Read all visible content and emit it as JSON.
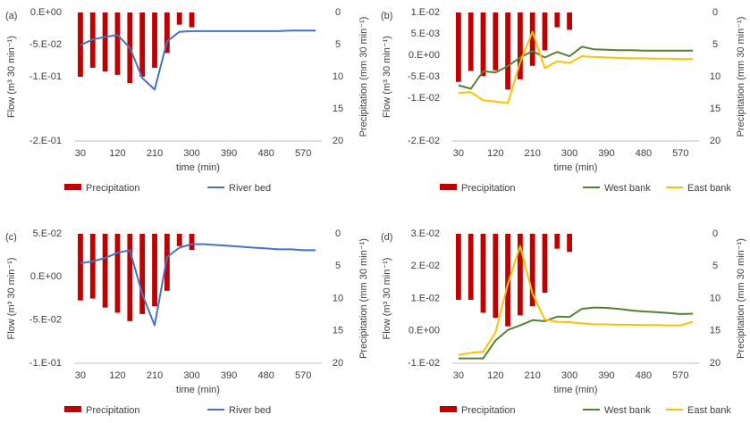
{
  "colors": {
    "precip": "#C00000",
    "river_bed": "#4472C4",
    "west_bank": "#548235",
    "east_bank": "#FFC000",
    "axis": "#BFBFBF",
    "text": "#404040"
  },
  "chart_data": [
    {
      "panel": "(a)",
      "type": "bar+line",
      "xlabel": "time (min)",
      "ylabel_left": "Flow (m³ 30 min⁻¹)",
      "ylabel_right": "Precipitation (mm 30 min⁻¹)",
      "x": [
        30,
        60,
        90,
        120,
        150,
        180,
        210,
        240,
        270,
        300,
        330,
        360,
        390,
        420,
        450,
        480,
        510,
        540,
        570,
        600
      ],
      "x_tick_labels": [
        "30",
        "120",
        "210",
        "300",
        "390",
        "480",
        "570"
      ],
      "x_tick_values": [
        30,
        120,
        210,
        300,
        390,
        480,
        570
      ],
      "ylim_left": [
        -0.2,
        0
      ],
      "y_ticks_left": [
        "0.E+00",
        "-5.E-02",
        "-1.E-01",
        "-2.E-01"
      ],
      "y_tick_values_left": [
        0,
        -0.05,
        -0.1,
        -0.2
      ],
      "ylim_right": [
        20,
        0
      ],
      "y_ticks_right": [
        "0",
        "5",
        "10",
        "15",
        "20"
      ],
      "precipitation": {
        "name": "Precipitation",
        "x": [
          30,
          60,
          90,
          120,
          150,
          180,
          210,
          240,
          270,
          300
        ],
        "values": [
          10,
          8.6,
          9.2,
          9.7,
          11,
          10,
          8.6,
          6.3,
          1.9,
          2.3
        ]
      },
      "series": [
        {
          "name": "River bed",
          "color_key": "river_bed",
          "values": [
            -0.051,
            -0.042,
            -0.038,
            -0.035,
            -0.055,
            -0.102,
            -0.12,
            -0.045,
            -0.03,
            -0.029,
            -0.029,
            -0.029,
            -0.029,
            -0.029,
            -0.029,
            -0.029,
            -0.029,
            -0.028,
            -0.028,
            -0.028
          ]
        }
      ],
      "legend": [
        "Precipitation",
        "River bed"
      ]
    },
    {
      "panel": "(b)",
      "type": "bar+line",
      "xlabel": "time (min)",
      "ylabel_left": "Flow (m³ 30 min⁻¹)",
      "ylabel_right": "Precipitation (mm 30 min⁻¹)",
      "x": [
        30,
        60,
        90,
        120,
        150,
        180,
        210,
        240,
        270,
        300,
        330,
        360,
        390,
        420,
        450,
        480,
        510,
        540,
        570,
        600
      ],
      "x_tick_labels": [
        "30",
        "120",
        "210",
        "300",
        "390",
        "480",
        "570"
      ],
      "x_tick_values": [
        30,
        120,
        210,
        300,
        390,
        480,
        570
      ],
      "ylim_left": [
        -0.02,
        0.01
      ],
      "y_ticks_left": [
        "1.E-02",
        "5.E-03",
        "0.E+00",
        "-5.E-03",
        "-1.E-02",
        "-2.E-02"
      ],
      "y_tick_values_left": [
        0.01,
        0.005,
        0,
        -0.005,
        -0.01,
        -0.02
      ],
      "ylim_right": [
        20,
        0
      ],
      "y_ticks_right": [
        "0",
        "5",
        "10",
        "15",
        "20"
      ],
      "precipitation": {
        "name": "Precipitation",
        "x": [
          30,
          60,
          90,
          120,
          150,
          180,
          210,
          240,
          270,
          300
        ],
        "values": [
          10.8,
          9.1,
          9.9,
          9,
          12,
          10.4,
          8.3,
          5.9,
          2.3,
          2.7
        ]
      },
      "series": [
        {
          "name": "West bank",
          "color_key": "west_bank",
          "values": [
            -0.007,
            -0.0078,
            -0.0037,
            -0.004,
            -0.0025,
            -0.0005,
            0.001,
            -0.0005,
            0.0008,
            -0.0002,
            0.002,
            0.0014,
            0.0013,
            0.0012,
            0.0012,
            0.0011,
            0.0011,
            0.0011,
            0.0011,
            0.0011
          ]
        },
        {
          "name": "East bank",
          "color_key": "east_bank",
          "values": [
            -0.0088,
            -0.0086,
            -0.0105,
            -0.0108,
            -0.0112,
            -0.0016,
            0.0055,
            -0.003,
            -0.0014,
            -0.0018,
            -0.0002,
            -0.0004,
            -0.0005,
            -0.0006,
            -0.0007,
            -0.0007,
            -0.0008,
            -0.0008,
            -0.0009,
            -0.0009
          ]
        }
      ],
      "legend": [
        "Precipitation",
        "West bank",
        "East bank"
      ]
    },
    {
      "panel": "(c)",
      "type": "bar+line",
      "xlabel": "time (min)",
      "ylabel_left": "Flow (m³ 30 min⁻¹)",
      "ylabel_right": "Precipitation (mm 30 min⁻¹)",
      "x": [
        30,
        60,
        90,
        120,
        150,
        180,
        210,
        240,
        270,
        300,
        330,
        360,
        390,
        420,
        450,
        480,
        510,
        540,
        570,
        600
      ],
      "x_tick_labels": [
        "30",
        "120",
        "210",
        "300",
        "390",
        "480",
        "570"
      ],
      "x_tick_values": [
        30,
        120,
        210,
        300,
        390,
        480,
        570
      ],
      "ylim_left": [
        -0.1,
        0.05
      ],
      "y_ticks_left": [
        "5.E-02",
        "0.E+00",
        "-5.E-02",
        "-1.E-01"
      ],
      "y_tick_values_left": [
        0.05,
        0,
        -0.05,
        -0.1
      ],
      "ylim_right": [
        20,
        0
      ],
      "y_ticks_right": [
        "0",
        "5",
        "10",
        "15",
        "20"
      ],
      "precipitation": {
        "name": "Precipitation",
        "x": [
          30,
          60,
          90,
          120,
          150,
          180,
          210,
          240,
          270,
          300
        ],
        "values": [
          10.3,
          10,
          11.4,
          12.2,
          13.5,
          12.4,
          11.2,
          8.8,
          1.9,
          2.5
        ]
      },
      "series": [
        {
          "name": "River bed",
          "color_key": "river_bed",
          "values": [
            0.016,
            0.018,
            0.022,
            0.028,
            0.031,
            -0.02,
            -0.056,
            0.023,
            0.034,
            0.038,
            0.038,
            0.037,
            0.036,
            0.035,
            0.034,
            0.033,
            0.032,
            0.032,
            0.031,
            0.031
          ]
        }
      ],
      "legend": [
        "Precipitation",
        "River bed"
      ]
    },
    {
      "panel": "(d)",
      "type": "bar+line",
      "xlabel": "time (min)",
      "ylabel_left": "Flow (m³ 30 min⁻¹)",
      "ylabel_right": "Precipitation (mm 30 min⁻¹)",
      "x": [
        30,
        60,
        90,
        120,
        150,
        180,
        210,
        240,
        270,
        300,
        330,
        360,
        390,
        420,
        450,
        480,
        510,
        540,
        570,
        600
      ],
      "x_tick_labels": [
        "30",
        "120",
        "210",
        "300",
        "390",
        "480",
        "570"
      ],
      "x_tick_values": [
        30,
        120,
        210,
        300,
        390,
        480,
        570
      ],
      "ylim_left": [
        -0.01,
        0.03
      ],
      "y_ticks_left": [
        "3.E-02",
        "2.E-02",
        "1.E-02",
        "0.E+00",
        "-1.E-02"
      ],
      "y_tick_values_left": [
        0.03,
        0.02,
        0.01,
        0,
        -0.01
      ],
      "ylim_right": [
        20,
        0
      ],
      "y_ticks_right": [
        "0",
        "5",
        "10",
        "15",
        "20"
      ],
      "precipitation": {
        "name": "Precipitation",
        "x": [
          30,
          60,
          90,
          120,
          150,
          180,
          210,
          240,
          270,
          300
        ],
        "values": [
          10.2,
          10.2,
          12.2,
          13,
          14.3,
          12.6,
          11.2,
          9.1,
          2.3,
          2.8
        ]
      },
      "series": [
        {
          "name": "West bank",
          "color_key": "west_bank",
          "values": [
            -0.0085,
            -0.0085,
            -0.0085,
            -0.003,
            0.0003,
            0.0017,
            0.0033,
            0.003,
            0.0044,
            0.0043,
            0.0068,
            0.0072,
            0.0071,
            0.0068,
            0.0063,
            0.006,
            0.0058,
            0.0055,
            0.0052,
            0.0053
          ]
        },
        {
          "name": "East bank",
          "color_key": "east_bank",
          "values": [
            -0.0075,
            -0.0068,
            -0.0065,
            -0.0005,
            0.0145,
            0.0262,
            0.0115,
            0.0035,
            0.0028,
            0.0027,
            0.0023,
            0.002,
            0.002,
            0.0019,
            0.0019,
            0.0018,
            0.0018,
            0.0017,
            0.0017,
            0.0028
          ]
        }
      ],
      "legend": [
        "Precipitation",
        "West bank",
        "East bank"
      ]
    }
  ]
}
